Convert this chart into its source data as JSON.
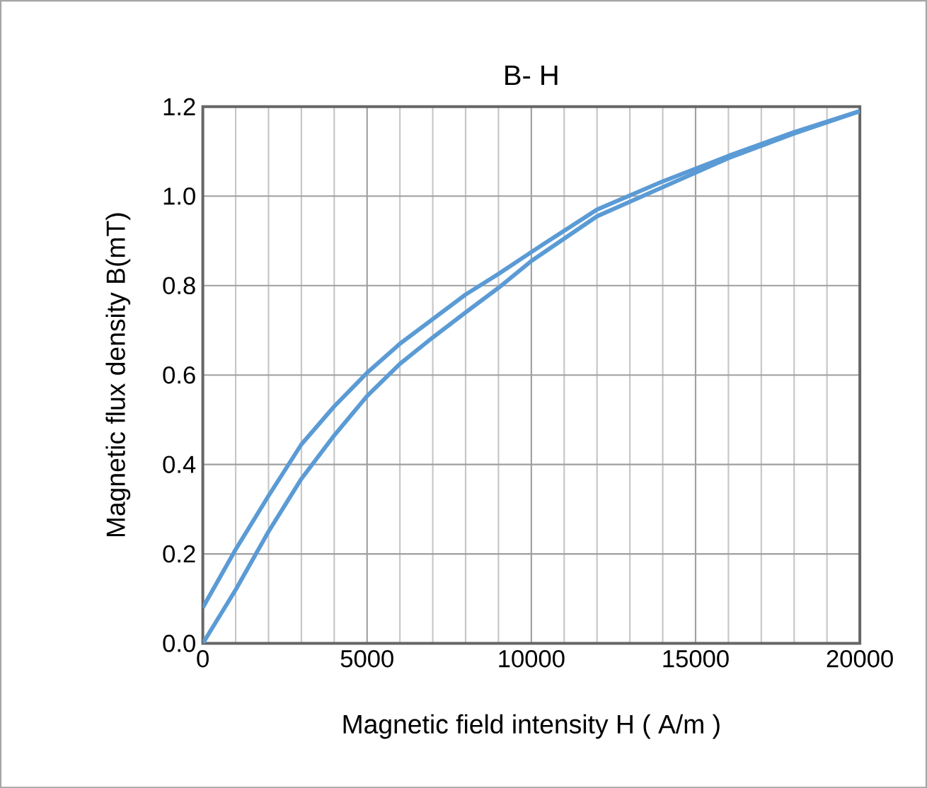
{
  "chart_data": {
    "type": "line",
    "title": "B- H",
    "xlabel": "Magnetic field intensity H (   A/m   )",
    "ylabel": "Magnetic flux density B(mT)",
    "series": [
      {
        "color": "#5b9bd5",
        "x": [
          0,
          1000,
          2000,
          3000,
          4000,
          5000,
          6000,
          7000,
          8000,
          9000,
          10000,
          12000,
          14000,
          16000,
          18000,
          20000
        ],
        "values": [
          0.08,
          0.21,
          0.33,
          0.445,
          0.53,
          0.605,
          0.67,
          0.725,
          0.78,
          0.826,
          0.875,
          0.97,
          1.033,
          1.09,
          1.143,
          1.19
        ]
      },
      {
        "color": "#5b9bd5",
        "x": [
          0,
          1000,
          2000,
          3000,
          4000,
          5000,
          6000,
          7000,
          8000,
          9000,
          10000,
          12000,
          14000,
          16000,
          18000,
          20000
        ],
        "values": [
          0.0,
          0.12,
          0.25,
          0.368,
          0.465,
          0.553,
          0.625,
          0.684,
          0.74,
          0.795,
          0.855,
          0.955,
          1.02,
          1.085,
          1.14,
          1.19
        ]
      }
    ],
    "xlim": [
      0,
      20000
    ],
    "ylim": [
      0,
      1.2
    ],
    "xticks": [
      0,
      5000,
      10000,
      15000,
      20000
    ],
    "yticks": [
      {
        "value": 0,
        "label": "0.0"
      },
      {
        "value": 0.2,
        "label": "0.2"
      },
      {
        "value": 0.4,
        "label": "0.4"
      },
      {
        "value": 0.6,
        "label": "0.6"
      },
      {
        "value": 0.8,
        "label": "0.8"
      },
      {
        "value": 1.0,
        "label": "1.0"
      },
      {
        "value": 1.2,
        "label": "1.2"
      }
    ],
    "grid": true,
    "marker": "none",
    "line_style": "solid"
  }
}
